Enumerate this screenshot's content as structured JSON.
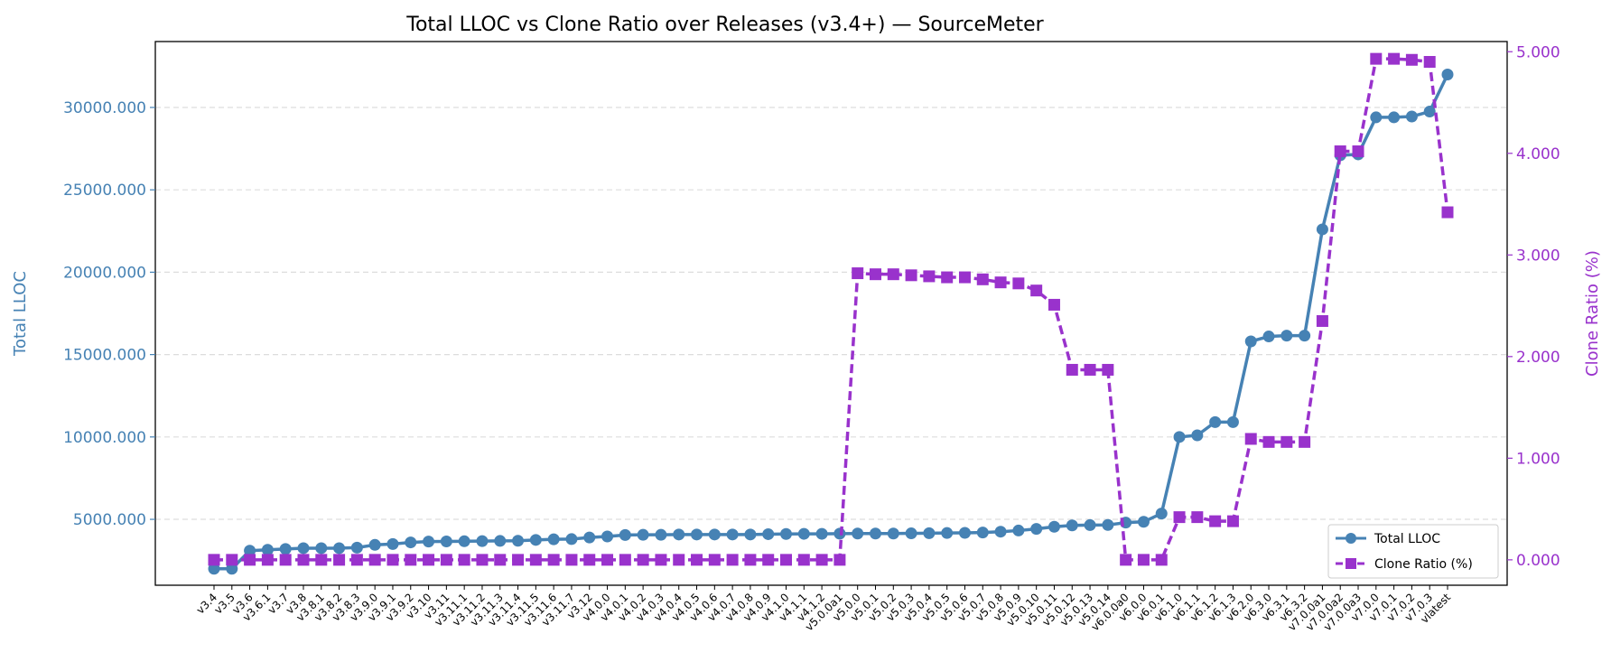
{
  "chart_data": {
    "type": "line",
    "title": "Total LLOC vs Clone Ratio over Releases (v3.4+) — SourceMeter",
    "ylabel_left": "Total LLOC",
    "ylabel_right": "Clone Ratio (%)",
    "ylim_left": [
      1000,
      34000
    ],
    "ylim_right": [
      -0.25,
      5.1
    ],
    "yticks_left": [
      "5000.000",
      "10000.000",
      "15000.000",
      "20000.000",
      "25000.000",
      "30000.000"
    ],
    "yticks_right": [
      "0.000",
      "1.000",
      "2.000",
      "3.000",
      "4.000",
      "5.000"
    ],
    "grid": "horizontal dashed",
    "legend_position": "lower-right",
    "colors": {
      "lloc": "#4682b4",
      "clone": "#9932cc"
    },
    "categories": [
      "v3.4",
      "v3.5",
      "v3.6",
      "v3.6.1",
      "v3.7",
      "v3.8",
      "v3.8.1",
      "v3.8.2",
      "v3.8.3",
      "v3.9.0",
      "v3.9.1",
      "v3.9.2",
      "v3.10",
      "v3.11",
      "v3.11.1",
      "v3.11.2",
      "v3.11.3",
      "v3.11.4",
      "v3.11.5",
      "v3.11.6",
      "v3.11.7",
      "v3.12",
      "v4.0.0",
      "v4.0.1",
      "v4.0.2",
      "v4.0.3",
      "v4.0.4",
      "v4.0.5",
      "v4.0.6",
      "v4.0.7",
      "v4.0.8",
      "v4.0.9",
      "v4.1.0",
      "v4.1.1",
      "v4.1.2",
      "v5.0.0a1",
      "v5.0.0",
      "v5.0.1",
      "v5.0.2",
      "v5.0.3",
      "v5.0.4",
      "v5.0.5",
      "v5.0.6",
      "v5.0.7",
      "v5.0.8",
      "v5.0.9",
      "v5.0.10",
      "v5.0.11",
      "v5.0.12",
      "v5.0.13",
      "v5.0.14",
      "v6.0.0a0",
      "v6.0.0",
      "v6.0.1",
      "v6.1.0",
      "v6.1.1",
      "v6.1.2",
      "v6.1.3",
      "v6.2.0",
      "v6.3.0",
      "v6.3.1",
      "v6.3.2",
      "v7.0.0a1",
      "v7.0.0a2",
      "v7.0.0a3",
      "v7.0.0",
      "v7.0.1",
      "v7.0.2",
      "v7.0.3",
      "vlatest"
    ],
    "series": [
      {
        "name": "Total LLOC",
        "axis": "left",
        "values": [
          2000,
          2000,
          3100,
          3150,
          3200,
          3250,
          3250,
          3250,
          3280,
          3450,
          3500,
          3600,
          3650,
          3660,
          3670,
          3680,
          3690,
          3700,
          3750,
          3790,
          3800,
          3900,
          3960,
          4050,
          4060,
          4060,
          4080,
          4080,
          4080,
          4080,
          4080,
          4100,
          4110,
          4120,
          4120,
          4130,
          4140,
          4140,
          4140,
          4150,
          4160,
          4170,
          4180,
          4200,
          4250,
          4320,
          4420,
          4550,
          4630,
          4650,
          4660,
          4800,
          4850,
          5350,
          10000,
          10100,
          10900,
          10900,
          15800,
          16100,
          16150,
          16150,
          22600,
          27100,
          27150,
          29400,
          29400,
          29450,
          29750,
          32000
        ]
      },
      {
        "name": "Clone Ratio (%)",
        "axis": "right",
        "values": [
          0,
          0,
          0,
          0,
          0,
          0,
          0,
          0,
          0,
          0,
          0,
          0,
          0,
          0,
          0,
          0,
          0,
          0,
          0,
          0,
          0,
          0,
          0,
          0,
          0,
          0,
          0,
          0,
          0,
          0,
          0,
          0,
          0,
          0,
          0,
          0,
          2.82,
          2.81,
          2.81,
          2.8,
          2.79,
          2.78,
          2.78,
          2.76,
          2.73,
          2.72,
          2.65,
          2.51,
          1.87,
          1.87,
          1.87,
          0,
          0,
          0,
          0.42,
          0.42,
          0.38,
          0.38,
          1.19,
          1.16,
          1.16,
          1.16,
          2.35,
          4.02,
          4.02,
          4.93,
          4.93,
          4.92,
          4.9,
          3.42
        ]
      }
    ]
  }
}
